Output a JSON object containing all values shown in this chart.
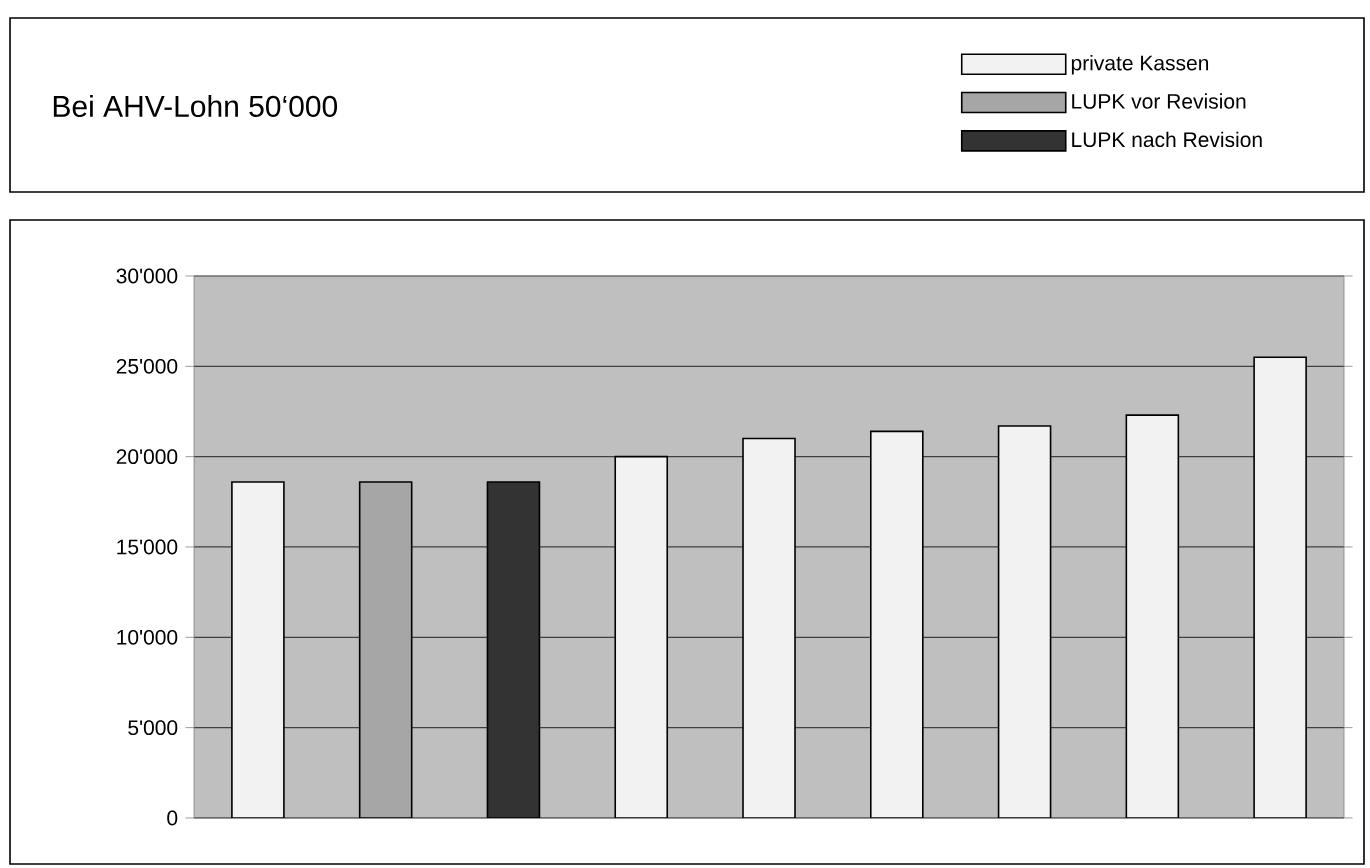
{
  "chart_data": {
    "type": "bar",
    "title": "Bei AHV-Lohn 50‘000",
    "categories": [
      null,
      null,
      null,
      null,
      null,
      null,
      null,
      null,
      null
    ],
    "series": [
      {
        "name": "private Kassen",
        "color": "#f2f2f2",
        "values": [
          18600,
          null,
          null,
          20000,
          21000,
          21400,
          21700,
          22300,
          25500
        ]
      },
      {
        "name": "LUPK vor Revision",
        "color": "#a6a6a6",
        "values": [
          null,
          18600,
          null,
          null,
          null,
          null,
          null,
          null,
          null
        ]
      },
      {
        "name": "LUPK nach Revision",
        "color": "#333333",
        "values": [
          null,
          null,
          18600,
          null,
          null,
          null,
          null,
          null,
          null
        ]
      }
    ],
    "ylim": [
      0,
      30000
    ],
    "yticks": [
      {
        "value": 0,
        "label": "0"
      },
      {
        "value": 5000,
        "label": "5'000"
      },
      {
        "value": 10000,
        "label": "10'000"
      },
      {
        "value": 15000,
        "label": "15'000"
      },
      {
        "value": 20000,
        "label": "20'000"
      },
      {
        "value": 25000,
        "label": "25'000"
      },
      {
        "value": 30000,
        "label": "30'000"
      }
    ],
    "grid": "y",
    "legend": "top right"
  }
}
